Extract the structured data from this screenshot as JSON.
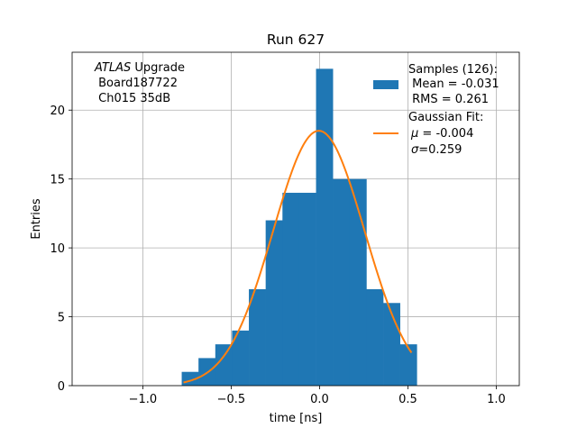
{
  "chart_data": {
    "type": "bar",
    "title": "Run 627",
    "xlabel": "time [ns]",
    "ylabel": "Entries",
    "xlim": [
      -1.4,
      1.13
    ],
    "ylim": [
      0,
      24.2
    ],
    "grid": true,
    "x_ticks": [
      -1.0,
      -0.5,
      0.0,
      0.5,
      1.0
    ],
    "x_tick_labels": [
      "−1.0",
      "−0.5",
      "0.0",
      "0.5",
      "1.0"
    ],
    "y_ticks": [
      0,
      5,
      10,
      15,
      20
    ],
    "y_tick_labels": [
      "0",
      "5",
      "10",
      "15",
      "20"
    ],
    "annotation": {
      "italic_part": "ATLAS",
      "line1_rest": " Upgrade",
      "line2": " Board187722",
      "line3": " Ch015 35dB"
    },
    "histogram": {
      "name": "Samples (126):",
      "color": "#1f77b4",
      "bin_edges": [
        -0.78,
        -0.685,
        -0.59,
        -0.495,
        -0.4,
        -0.305,
        -0.21,
        -0.115,
        -0.02,
        0.075,
        0.17,
        0.265,
        0.36,
        0.455,
        0.55
      ],
      "counts": [
        1,
        2,
        3,
        4,
        7,
        12,
        14,
        14,
        23,
        15,
        15,
        7,
        6,
        3
      ]
    },
    "fit": {
      "name": "Gaussian Fit:",
      "color": "#ff7f0e",
      "amplitude": 18.5,
      "mu": -0.004,
      "sigma": 0.259,
      "x_range": [
        -0.77,
        0.52
      ]
    },
    "legend": {
      "placement": "top-right",
      "samples_lines": [
        "Samples (126):",
        " Mean = -0.031",
        " RMS = 0.261"
      ],
      "fit_title": "Gaussian Fit:",
      "fit_mu_symbol": "μ",
      "fit_mu_value": " = -0.004",
      "fit_sigma_symbol": "σ",
      "fit_sigma_value": "=0.259"
    }
  }
}
